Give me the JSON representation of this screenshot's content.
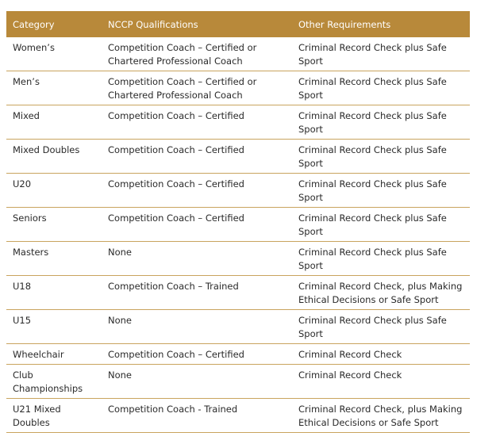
{
  "table": {
    "header": [
      "Category",
      "NCCP Qualifications",
      "Other Requirements"
    ],
    "rows": [
      [
        "Women’s",
        "Competition Coach – Certified or Chartered Professional Coach",
        "Criminal Record Check plus Safe Sport"
      ],
      [
        "Men’s",
        "Competition Coach – Certified or Chartered Professional Coach",
        "Criminal Record Check plus Safe Sport"
      ],
      [
        "Mixed",
        "Competition Coach – Certified",
        "Criminal Record Check plus Safe Sport"
      ],
      [
        "Mixed Doubles",
        "Competition Coach – Certified",
        "Criminal Record Check plus Safe Sport"
      ],
      [
        "U20",
        "Competition Coach – Certified",
        "Criminal Record Check plus Safe Sport"
      ],
      [
        "Seniors",
        "Competition Coach – Certified",
        "Criminal Record Check plus Safe Sport"
      ],
      [
        "Masters",
        "None",
        "Criminal Record Check plus Safe Sport"
      ],
      [
        "U18",
        "Competition Coach – Trained",
        "Criminal Record Check, plus Making Ethical Decisions or Safe Sport"
      ],
      [
        "U15",
        "None",
        "Criminal Record Check plus Safe Sport"
      ],
      [
        "Wheelchair",
        "Competition Coach – Certified",
        "Criminal Record Check"
      ],
      [
        "Club Championships",
        "None",
        "Criminal Record Check"
      ],
      [
        "U21 Mixed Doubles",
        "Competition Coach - Trained",
        "Criminal Record Check, plus Making Ethical Decisions or Safe Sport"
      ]
    ]
  }
}
